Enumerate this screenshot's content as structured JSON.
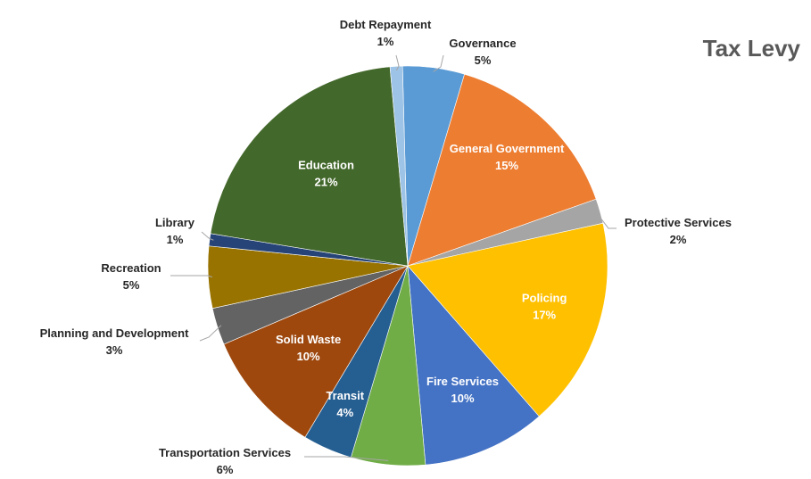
{
  "chart_data": {
    "type": "pie",
    "title": "Tax Levy",
    "start_angle_deg": -1.5,
    "direction": "clockwise",
    "slices": [
      {
        "name": "Governance",
        "percent_label": "5%",
        "value": 5,
        "color": "#5B9BD5",
        "label_pos": "outside"
      },
      {
        "name": "General Government",
        "percent_label": "15%",
        "value": 15,
        "color": "#ED7D31",
        "label_pos": "inside"
      },
      {
        "name": "Protective Services",
        "percent_label": "2%",
        "value": 2,
        "color": "#A5A5A5",
        "label_pos": "outside"
      },
      {
        "name": "Policing",
        "percent_label": "17%",
        "value": 17,
        "color": "#FFC000",
        "label_pos": "inside"
      },
      {
        "name": "Fire Services",
        "percent_label": "10%",
        "value": 10,
        "color": "#4472C4",
        "label_pos": "inside"
      },
      {
        "name": "Transportation Services",
        "percent_label": "6%",
        "value": 6,
        "color": "#70AD47",
        "label_pos": "outside"
      },
      {
        "name": "Transit",
        "percent_label": "4%",
        "value": 4,
        "color": "#255E91",
        "label_pos": "inside"
      },
      {
        "name": "Solid Waste",
        "percent_label": "10%",
        "value": 10,
        "color": "#9E480E",
        "label_pos": "inside"
      },
      {
        "name": "Planning and Development",
        "percent_label": "3%",
        "value": 3,
        "color": "#636363",
        "label_pos": "outside"
      },
      {
        "name": "Recreation",
        "percent_label": "5%",
        "value": 5,
        "color": "#997300",
        "label_pos": "outside"
      },
      {
        "name": "Library",
        "percent_label": "1%",
        "value": 1,
        "color": "#264478",
        "label_pos": "outside"
      },
      {
        "name": "Education",
        "percent_label": "21%",
        "value": 21,
        "color": "#43682B",
        "label_pos": "inside"
      },
      {
        "name": "Debt Repayment",
        "percent_label": "1%",
        "value": 1,
        "color": "#9DC3E6",
        "label_pos": "outside"
      }
    ],
    "legend": "none",
    "grid": false
  }
}
